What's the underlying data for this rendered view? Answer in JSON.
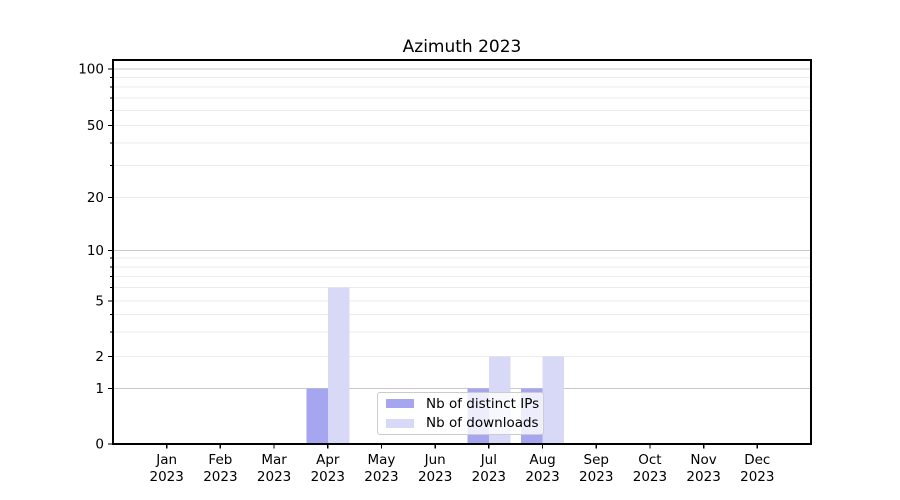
{
  "chart_data": {
    "type": "bar",
    "title": "Azimuth 2023",
    "categories": [
      "Jan",
      "Feb",
      "Mar",
      "Apr",
      "May",
      "Jun",
      "Jul",
      "Aug",
      "Sep",
      "Oct",
      "Nov",
      "Dec"
    ],
    "category_year": "2023",
    "series": [
      {
        "name": "Nb of distinct IPs",
        "color": "#a5a5f0",
        "values": [
          0,
          0,
          0,
          1,
          0,
          0,
          1,
          1,
          0,
          0,
          0,
          0
        ]
      },
      {
        "name": "Nb of downloads",
        "color": "#d8d8f7",
        "values": [
          0,
          0,
          0,
          6,
          0,
          0,
          2,
          2,
          0,
          0,
          0,
          0
        ]
      }
    ],
    "xlabel": "",
    "ylabel": "",
    "yaxis": {
      "scale": "symlog",
      "ticks": [
        0,
        1,
        2,
        5,
        10,
        20,
        50,
        100
      ],
      "minor_ticks": [
        3,
        4,
        6,
        7,
        8,
        9,
        30,
        40,
        60,
        70,
        80,
        90
      ],
      "range": [
        0,
        112
      ]
    },
    "grid": "horizontal",
    "legend": {
      "position": "lower-center-inside",
      "entries": [
        "Nb of distinct IPs",
        "Nb of downloads"
      ]
    },
    "colors": {
      "major_gridline": "#c8c8c8",
      "minor_gridline": "#ebebeb",
      "spine": "#000000",
      "text": "#000000"
    }
  }
}
